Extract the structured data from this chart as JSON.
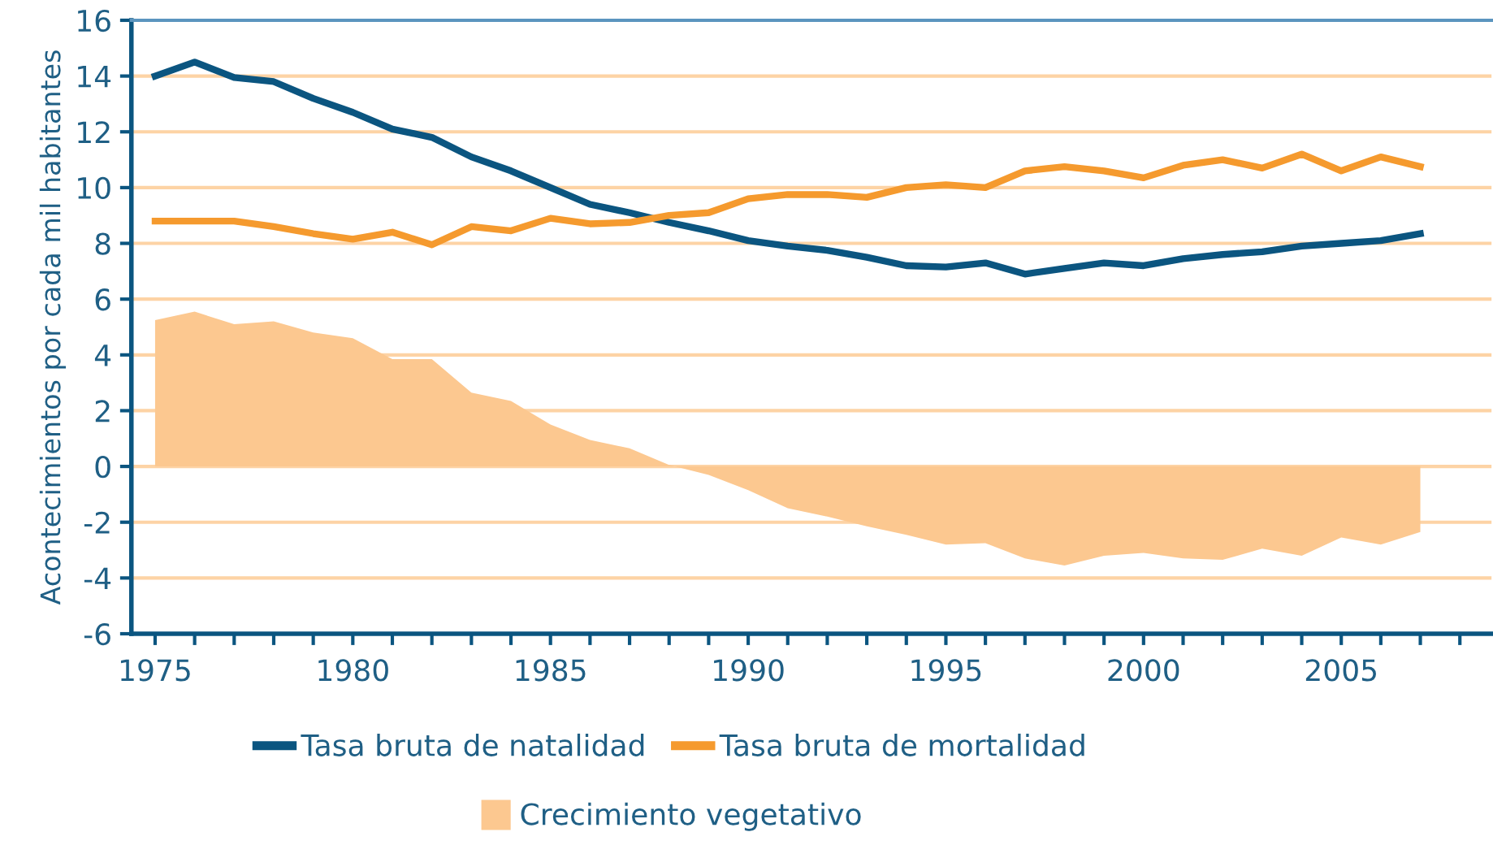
{
  "chart_data": {
    "type": "line",
    "ylabel": "Acontecimientos por cada mil habitantes",
    "x": [
      1975,
      1976,
      1977,
      1978,
      1979,
      1980,
      1981,
      1982,
      1983,
      1984,
      1985,
      1986,
      1987,
      1988,
      1989,
      1990,
      1991,
      1992,
      1993,
      1994,
      1995,
      1996,
      1997,
      1998,
      1999,
      2000,
      2001,
      2002,
      2003,
      2004,
      2005,
      2006,
      2007
    ],
    "series": [
      {
        "name": "Tasa bruta de natalidad",
        "color": "#0b5580",
        "values": [
          14.0,
          14.5,
          13.95,
          13.8,
          13.2,
          12.7,
          12.1,
          11.8,
          11.1,
          10.6,
          10.0,
          9.4,
          9.1,
          8.75,
          8.45,
          8.1,
          7.9,
          7.75,
          7.5,
          7.2,
          7.15,
          7.3,
          6.9,
          7.1,
          7.3,
          7.2,
          7.45,
          7.6,
          7.7,
          7.9,
          8.0,
          8.1,
          8.35
        ]
      },
      {
        "name": "Tasa bruta de mortalidad",
        "color": "#f59a2e",
        "values": [
          8.8,
          8.8,
          8.8,
          8.6,
          8.35,
          8.15,
          8.4,
          7.95,
          8.6,
          8.45,
          8.9,
          8.7,
          8.75,
          9.0,
          9.1,
          9.6,
          9.75,
          9.75,
          9.65,
          10.0,
          10.1,
          10.0,
          10.6,
          10.75,
          10.6,
          10.35,
          10.8,
          11.0,
          10.7,
          11.2,
          10.6,
          11.1,
          10.75
        ]
      },
      {
        "name": "Crecimiento vegetativo",
        "type": "area",
        "color": "#fcc890",
        "values": [
          5.25,
          5.55,
          5.1,
          5.2,
          4.8,
          4.6,
          3.85,
          3.85,
          2.65,
          2.35,
          1.5,
          0.95,
          0.65,
          0.05,
          -0.3,
          -0.85,
          -1.5,
          -1.8,
          -2.15,
          -2.45,
          -2.8,
          -2.75,
          -3.3,
          -3.55,
          -3.2,
          -3.1,
          -3.3,
          -3.35,
          -2.95,
          -3.2,
          -2.55,
          -2.8,
          -2.35
        ]
      }
    ],
    "xlim": [
      1974.4,
      2008.8
    ],
    "xticks": [
      1975,
      {
        "value": 1976,
        "label": null
      },
      {
        "value": 1977,
        "label": null
      },
      {
        "value": 1978,
        "label": null
      },
      {
        "value": 1979,
        "label": null
      },
      1980,
      {
        "value": 1981,
        "label": null
      },
      {
        "value": 1982,
        "label": null
      },
      {
        "value": 1983,
        "label": null
      },
      {
        "value": 1984,
        "label": null
      },
      1985,
      {
        "value": 1986,
        "label": null
      },
      {
        "value": 1987,
        "label": null
      },
      {
        "value": 1988,
        "label": null
      },
      {
        "value": 1989,
        "label": null
      },
      1990,
      {
        "value": 1991,
        "label": null
      },
      {
        "value": 1992,
        "label": null
      },
      {
        "value": 1993,
        "label": null
      },
      {
        "value": 1994,
        "label": null
      },
      1995,
      {
        "value": 1996,
        "label": null
      },
      {
        "value": 1997,
        "label": null
      },
      {
        "value": 1998,
        "label": null
      },
      {
        "value": 1999,
        "label": null
      },
      2000,
      {
        "value": 2001,
        "label": null
      },
      {
        "value": 2002,
        "label": null
      },
      {
        "value": 2003,
        "label": null
      },
      {
        "value": 2004,
        "label": null
      },
      2005,
      {
        "value": 2006,
        "label": null
      },
      {
        "value": 2007,
        "label": null
      },
      {
        "value": 2008,
        "label": null
      }
    ],
    "ylim": [
      -6,
      16
    ],
    "yticks": [
      -6,
      -4,
      -2,
      0,
      2,
      4,
      6,
      8,
      10,
      12,
      14,
      16
    ],
    "grid": "y",
    "legend": "bottom",
    "line_style": "solid",
    "marker": "none"
  }
}
